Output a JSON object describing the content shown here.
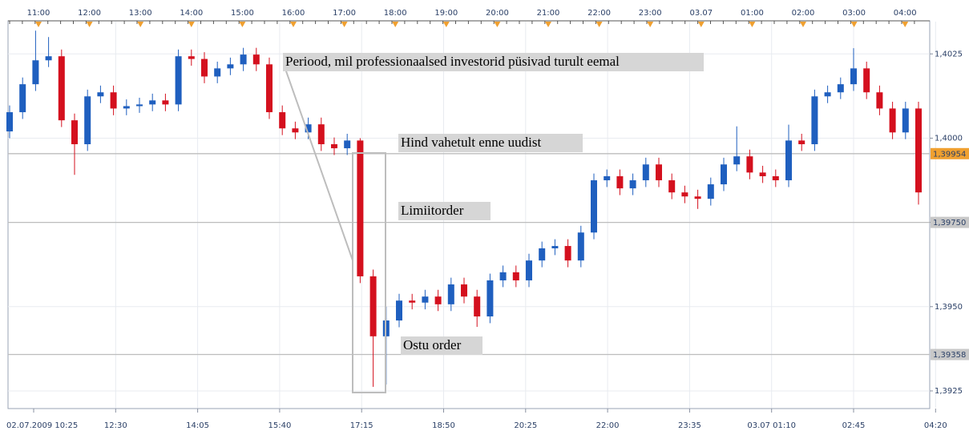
{
  "chart_data": {
    "type": "candlestick",
    "top_labels": [
      "11:00",
      "12:00",
      "13:00",
      "14:00",
      "15:00",
      "16:00",
      "17:00",
      "18:00",
      "19:00",
      "20:00",
      "21:00",
      "22:00",
      "23:00",
      "03.07",
      "01:00",
      "02:00",
      "03:00",
      "04:00"
    ],
    "bottom_labels": [
      "02.07.2009 10:25",
      "12:30",
      "14:05",
      "15:40",
      "17:15",
      "18:50",
      "20:25",
      "22:00",
      "23:35",
      "03.07 01:10",
      "02:45",
      "04:20"
    ],
    "ylim": [
      1.392,
      1.4036
    ],
    "yticks": [
      {
        "value": 1.3925,
        "label": "1,3925"
      },
      {
        "value": 1.395,
        "label": "1,3950"
      },
      {
        "value": 1.3975,
        "label": "1,3975"
      },
      {
        "value": 1.4,
        "label": "1,4000"
      },
      {
        "value": 1.4025,
        "label": "1,4025"
      }
    ],
    "levels": [
      {
        "value": 1.39954,
        "label": "1,39954",
        "color": "#f0a030"
      },
      {
        "value": 1.3975,
        "label": "1,39750",
        "color": "#c8c8c8"
      },
      {
        "value": 1.39358,
        "label": "1,39358",
        "color": "#c8c8c8"
      }
    ],
    "up_color": "#1f5fbf",
    "down_color": "#d4101e",
    "grid": true,
    "annotations": [
      "Periood, mil professionaalsed investorid püsivad turult eemal",
      "Hind vahetult enne uudist",
      "Limiitorder",
      "Ostu order"
    ],
    "open": [
      1.4002,
      1.40077,
      1.4016,
      1.40231,
      1.40243,
      1.40053,
      1.39982,
      1.40124,
      1.40136,
      1.40088,
      1.40095,
      1.401,
      1.40112,
      1.401,
      1.40243,
      1.40235,
      1.40183,
      1.40207,
      1.40219,
      1.40248,
      1.40219,
      1.40077,
      1.40029,
      1.40017,
      1.40041,
      1.39982,
      1.3997,
      1.39993,
      1.3959,
      1.39412,
      1.39459,
      1.39518,
      1.39512,
      1.3953,
      1.39507,
      1.39566,
      1.3953,
      1.39471,
      1.39578,
      1.39602,
      1.39578,
      1.39637,
      1.39673,
      1.3968,
      1.39637,
      1.3972,
      1.39875,
      1.39887,
      1.39851,
      1.39875,
      1.39922,
      1.39875,
      1.39839,
      1.39827,
      1.3982,
      1.39863,
      1.39922,
      1.39946,
      1.39898,
      1.39887,
      1.39875,
      1.39993,
      1.39982,
      1.40124,
      1.40136,
      1.4016,
      1.40207,
      1.40136,
      1.40088,
      1.40017,
      1.40088
    ],
    "high": [
      1.40097,
      1.4018,
      1.40319,
      1.403,
      1.40263,
      1.40073,
      1.40144,
      1.40156,
      1.40156,
      1.40115,
      1.4012,
      1.40132,
      1.40132,
      1.40263,
      1.40263,
      1.40255,
      1.40227,
      1.40239,
      1.40268,
      1.40268,
      1.40239,
      1.40097,
      1.40049,
      1.40061,
      1.40061,
      1.40002,
      1.40013,
      1.4,
      1.3961,
      1.395,
      1.39538,
      1.39538,
      1.3955,
      1.3955,
      1.39586,
      1.39586,
      1.3955,
      1.39598,
      1.39622,
      1.39622,
      1.39657,
      1.39693,
      1.397,
      1.397,
      1.3974,
      1.39895,
      1.39907,
      1.39907,
      1.39895,
      1.39942,
      1.39942,
      1.39895,
      1.39859,
      1.39847,
      1.39883,
      1.39942,
      1.40035,
      1.39966,
      1.39918,
      1.39907,
      1.4004,
      1.40013,
      1.40144,
      1.40156,
      1.4018,
      1.40267,
      1.40227,
      1.40156,
      1.40108,
      1.40108,
      1.40108
    ],
    "low": [
      1.4,
      1.40057,
      1.4014,
      1.40211,
      1.40033,
      1.39891,
      1.39962,
      1.40104,
      1.40068,
      1.40068,
      1.40075,
      1.4008,
      1.4008,
      1.4008,
      1.40215,
      1.40163,
      1.40163,
      1.40187,
      1.40199,
      1.40199,
      1.40057,
      1.40009,
      1.39997,
      1.39997,
      1.39962,
      1.3995,
      1.3995,
      1.3957,
      1.39262,
      1.39269,
      1.39439,
      1.39492,
      1.39492,
      1.39487,
      1.39487,
      1.3951,
      1.3944,
      1.39451,
      1.39558,
      1.39558,
      1.39558,
      1.39617,
      1.39653,
      1.39617,
      1.39617,
      1.397,
      1.39855,
      1.39831,
      1.39831,
      1.39855,
      1.39855,
      1.39819,
      1.39807,
      1.3979,
      1.398,
      1.39843,
      1.39902,
      1.39878,
      1.39867,
      1.39855,
      1.39855,
      1.39962,
      1.39962,
      1.40104,
      1.40116,
      1.4014,
      1.40116,
      1.40068,
      1.39997,
      1.39997,
      1.39803
    ],
    "close": [
      1.40077,
      1.4016,
      1.40231,
      1.40243,
      1.40053,
      1.39982,
      1.40124,
      1.40136,
      1.40088,
      1.40095,
      1.401,
      1.40112,
      1.401,
      1.40243,
      1.40235,
      1.40183,
      1.40207,
      1.40219,
      1.40248,
      1.40219,
      1.40077,
      1.40029,
      1.40017,
      1.40041,
      1.39982,
      1.3997,
      1.39993,
      1.3959,
      1.39412,
      1.39459,
      1.39518,
      1.39512,
      1.3953,
      1.39507,
      1.39566,
      1.3953,
      1.39471,
      1.39578,
      1.39602,
      1.39578,
      1.39637,
      1.39673,
      1.3968,
      1.39637,
      1.3972,
      1.39875,
      1.39887,
      1.39851,
      1.39875,
      1.39922,
      1.39875,
      1.39839,
      1.39827,
      1.3982,
      1.39863,
      1.39922,
      1.39946,
      1.39898,
      1.39887,
      1.39875,
      1.39993,
      1.39982,
      1.40124,
      1.40136,
      1.4016,
      1.40207,
      1.40136,
      1.40088,
      1.40017,
      1.40088,
      1.39839
    ]
  }
}
